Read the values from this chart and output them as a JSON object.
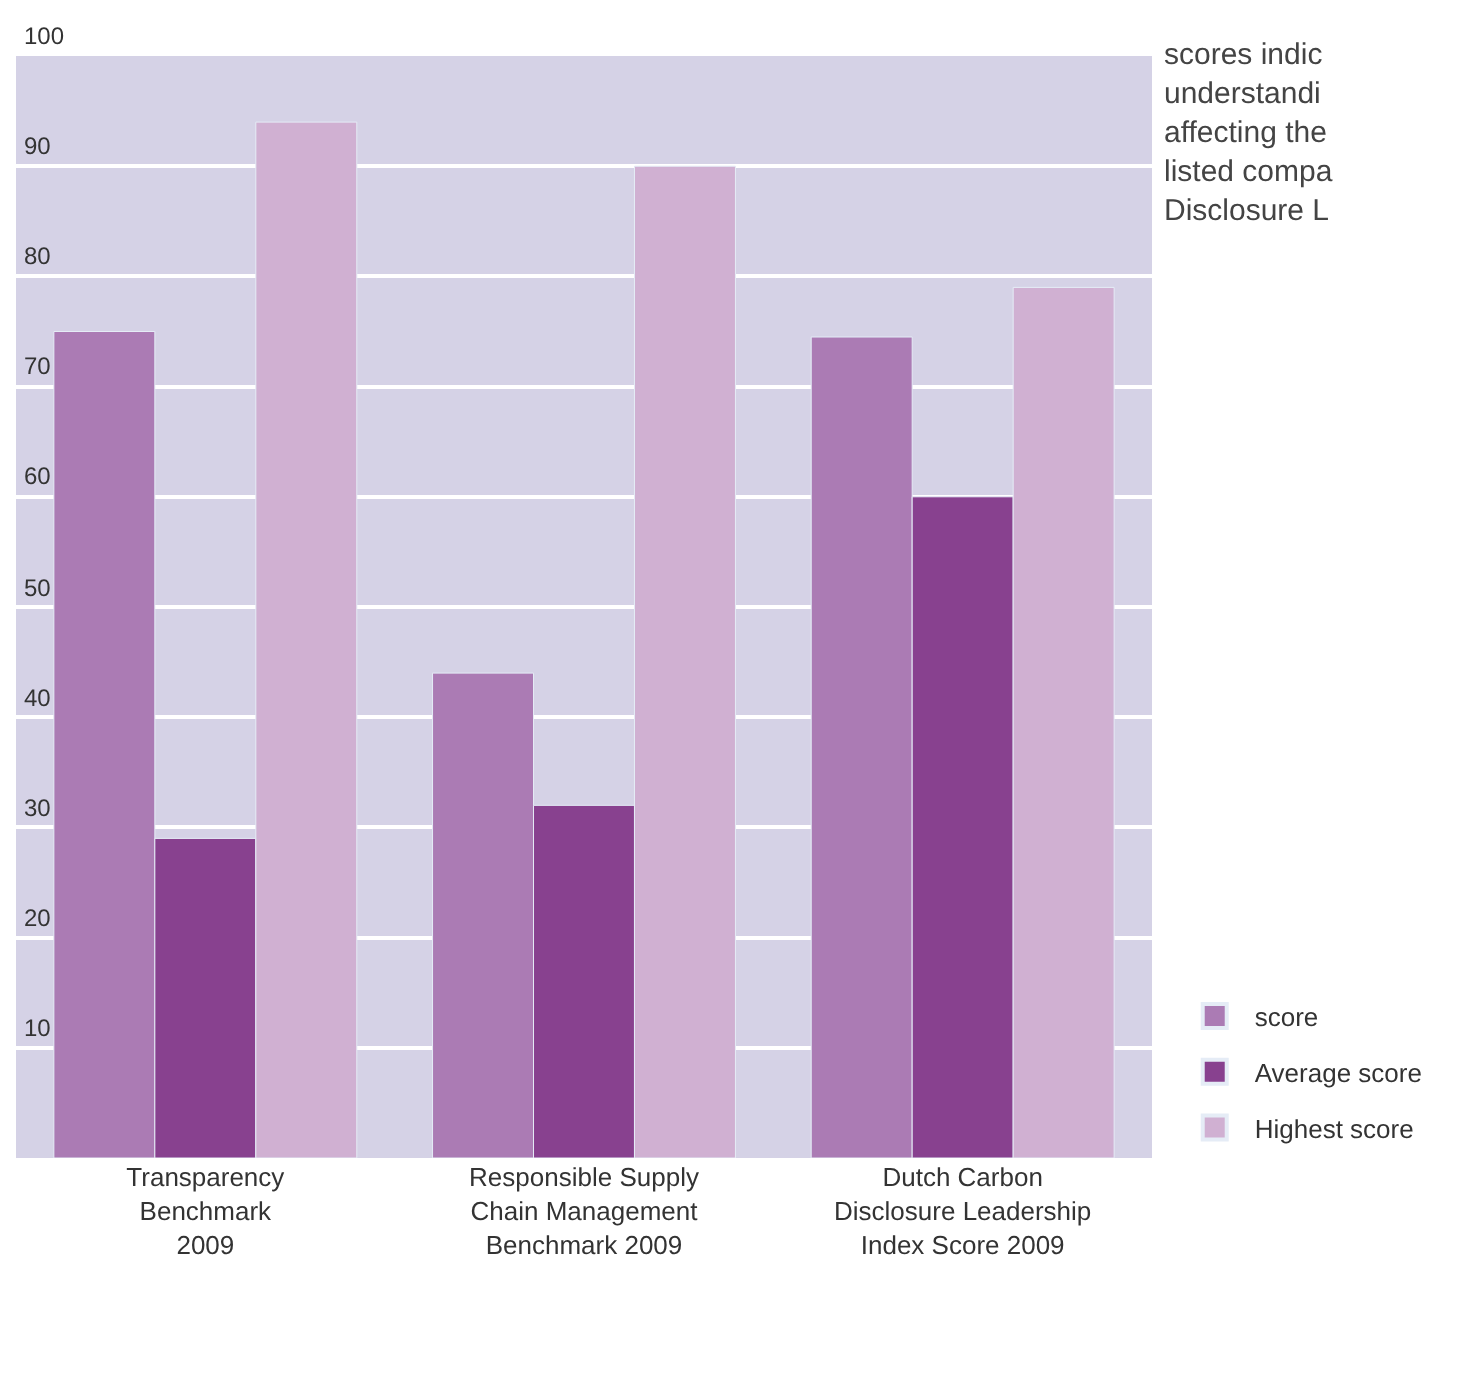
{
  "chart_data": {
    "type": "bar",
    "categories": [
      "Transparency\nBenchmark\n2009",
      "Responsible Supply\nChain Management\nBenchmark 2009",
      "Dutch Carbon\nDisclosure Leadership\nIndex Score 2009"
    ],
    "series": [
      {
        "name": "score",
        "color": "#ab7bb4",
        "values": [
          75,
          44,
          74.5
        ]
      },
      {
        "name": "Average score",
        "color": "#88418f",
        "values": [
          29,
          32,
          60
        ]
      },
      {
        "name": "Highest score",
        "color": "#d0b0d2",
        "values": [
          94,
          90,
          79
        ]
      }
    ],
    "ylim": [
      0,
      100
    ],
    "yticks": [
      10,
      20,
      30,
      40,
      50,
      60,
      70,
      80,
      90,
      100
    ],
    "grid": "y",
    "legend": "bottom right",
    "annotations": [
      "scores indic\nunderstandi\naffecting the\nlisted compa\nDisclosure L"
    ]
  }
}
